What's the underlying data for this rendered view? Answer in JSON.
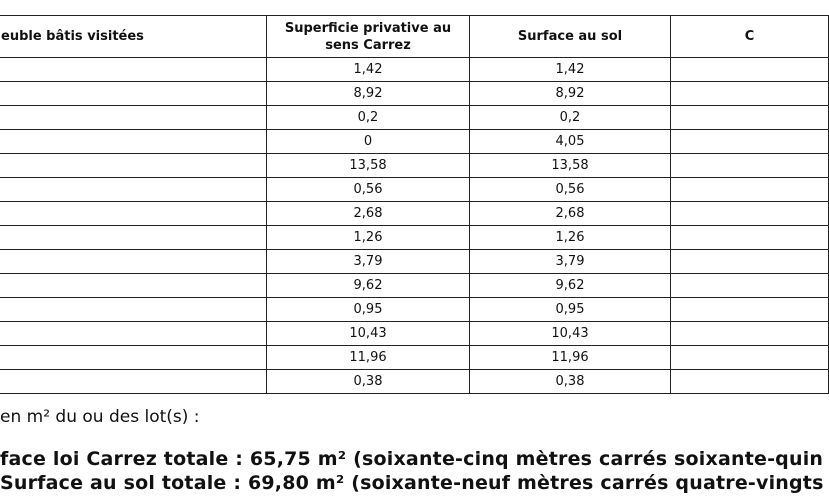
{
  "table": {
    "headers": [
      "euble bâtis visitées",
      "Superficie privative au sens Carrez",
      "Surface au sol",
      "C"
    ],
    "rows": [
      [
        "1,42",
        "1,42"
      ],
      [
        "8,92",
        "8,92"
      ],
      [
        "0,2",
        "0,2"
      ],
      [
        "0",
        "4,05"
      ],
      [
        "13,58",
        "13,58"
      ],
      [
        "0,56",
        "0,56"
      ],
      [
        "2,68",
        "2,68"
      ],
      [
        "1,26",
        "1,26"
      ],
      [
        "3,79",
        "3,79"
      ],
      [
        "9,62",
        "9,62"
      ],
      [
        "0,95",
        "0,95"
      ],
      [
        "10,43",
        "10,43"
      ],
      [
        "11,96",
        "11,96"
      ],
      [
        "0,38",
        "0,38"
      ]
    ]
  },
  "summary": {
    "intro": "en m² du ou des lot(s) :",
    "carrez": "face loi Carrez totale : 65,75 m² (soixante-cinq mètres carrés soixante-quin",
    "sol": "Surface au sol totale : 69,80 m² (soixante-neuf mètres carrés quatre-vingts"
  }
}
